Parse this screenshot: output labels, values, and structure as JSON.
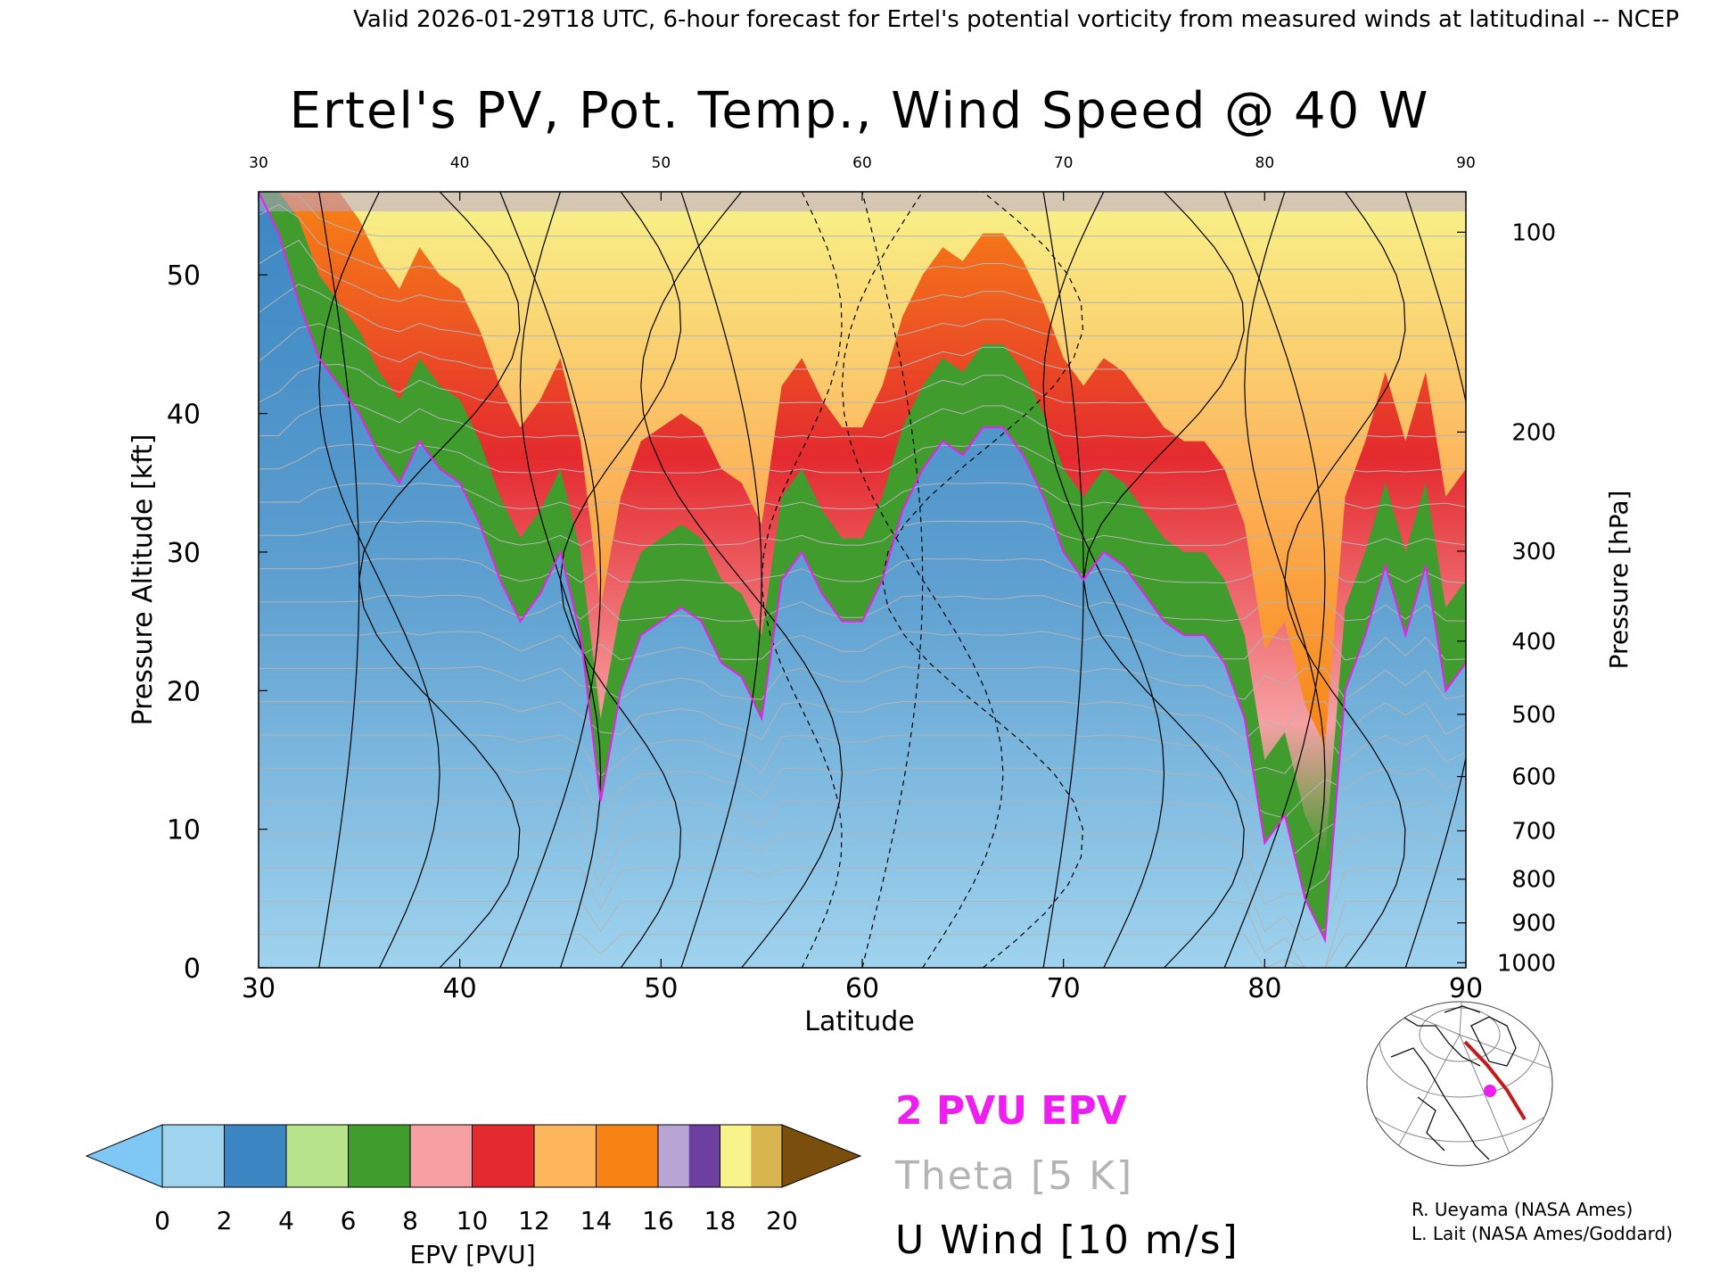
{
  "header": {
    "top_line": "Valid 2026-01-29T18 UTC, 6-hour forecast for Ertel's potential vorticity from measured winds at latitudinal -- NCEP",
    "title": "Ertel's PV, Pot. Temp., Wind Speed @ 40 W"
  },
  "chart_data": {
    "type": "heatmap",
    "title": "Ertel's PV, Pot. Temp., Wind Speed @ 40 W",
    "xlabel": "Latitude",
    "ylabel": "Pressure Altitude [kft]",
    "ylabel_right": "Pressure [hPa]",
    "xlim": [
      30,
      90
    ],
    "ylim": [
      0,
      56
    ],
    "x_ticks": [
      30,
      40,
      50,
      60,
      70,
      80,
      90
    ],
    "x_tick_labels": [
      "30",
      "40",
      "50",
      "60",
      "70",
      "80",
      "90"
    ],
    "y_ticks": [
      0,
      10,
      20,
      30,
      40,
      50
    ],
    "y_tick_labels": [
      "0",
      "10",
      "20",
      "30",
      "40",
      "50"
    ],
    "pressure_ticks": [
      100,
      200,
      300,
      400,
      500,
      600,
      700,
      800,
      900,
      1000
    ],
    "pressure_tick_labels": [
      "100",
      "200",
      "300",
      "400",
      "500",
      "600",
      "700",
      "800",
      "900",
      "1000"
    ],
    "tropopause_2pvu_kft": [
      [
        30,
        56
      ],
      [
        31,
        53
      ],
      [
        32,
        48
      ],
      [
        33,
        44
      ],
      [
        34,
        42
      ],
      [
        35,
        40
      ],
      [
        36,
        37
      ],
      [
        37,
        35
      ],
      [
        38,
        38
      ],
      [
        39,
        36
      ],
      [
        40,
        35
      ],
      [
        41,
        32
      ],
      [
        42,
        28
      ],
      [
        43,
        25
      ],
      [
        44,
        27
      ],
      [
        45,
        30
      ],
      [
        46,
        24
      ],
      [
        47,
        12
      ],
      [
        48,
        20
      ],
      [
        49,
        24
      ],
      [
        50,
        25
      ],
      [
        51,
        26
      ],
      [
        52,
        25
      ],
      [
        53,
        22
      ],
      [
        54,
        21
      ],
      [
        55,
        18
      ],
      [
        56,
        28
      ],
      [
        57,
        30
      ],
      [
        58,
        27
      ],
      [
        59,
        25
      ],
      [
        60,
        25
      ],
      [
        61,
        28
      ],
      [
        62,
        33
      ],
      [
        63,
        36
      ],
      [
        64,
        38
      ],
      [
        65,
        37
      ],
      [
        66,
        39
      ],
      [
        67,
        39
      ],
      [
        68,
        37
      ],
      [
        69,
        34
      ],
      [
        70,
        30
      ],
      [
        71,
        28
      ],
      [
        72,
        30
      ],
      [
        73,
        29
      ],
      [
        74,
        27
      ],
      [
        75,
        25
      ],
      [
        76,
        24
      ],
      [
        77,
        24
      ],
      [
        78,
        22
      ],
      [
        79,
        18
      ],
      [
        80,
        9
      ],
      [
        81,
        11
      ],
      [
        82,
        5
      ],
      [
        83,
        2
      ],
      [
        84,
        20
      ],
      [
        85,
        24
      ],
      [
        86,
        29
      ],
      [
        87,
        24
      ],
      [
        88,
        29
      ],
      [
        89,
        20
      ],
      [
        90,
        22
      ]
    ],
    "epv_colorbar": {
      "label": "EPV [PVU]",
      "min": 0,
      "max": 20,
      "ticks": [
        0,
        2,
        4,
        6,
        8,
        10,
        12,
        14,
        16,
        18,
        20
      ],
      "tick_labels": [
        "0",
        "2",
        "4",
        "6",
        "8",
        "10",
        "12",
        "14",
        "16",
        "18",
        "20"
      ],
      "colors": [
        "#9fd3ee",
        "#3b86c3",
        "#b7e38c",
        "#3f9c2d",
        "#f6a0a3",
        "#e42a2f",
        "#fdb65c",
        "#f78314",
        "#b8a4d5",
        "#6c3fa1"
      ],
      "under_color": "#7fc8f6",
      "over_color": "#7a4f0e",
      "top_segment_colors": [
        "#f8f38a",
        "#d8b54e"
      ]
    },
    "legend": {
      "pv_label": "2 PVU EPV",
      "theta_label": "Theta [5 K]",
      "wind_label": "U Wind [10 m/s]",
      "pv_color": "#ee1df0",
      "theta_color": "#b4b4b4",
      "wind_color": "#000000"
    }
  },
  "credits": {
    "line1": "R. Ueyama (NASA Ames)",
    "line2": "L. Lait (NASA Ames/Goddard)"
  },
  "inset_map": {
    "marker_color": "#ee1df0",
    "track_color": "#c41a1a"
  }
}
